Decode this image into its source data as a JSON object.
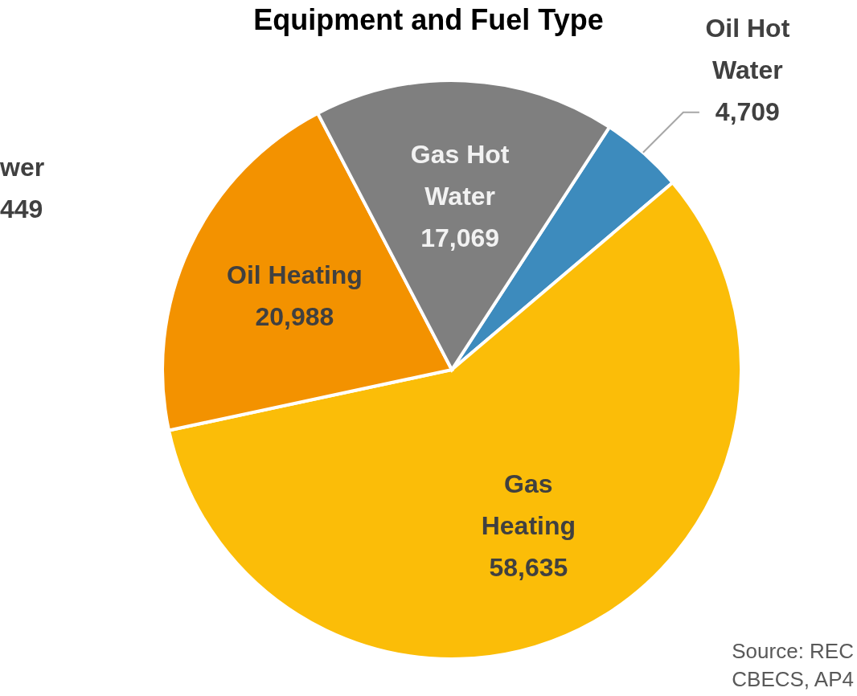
{
  "chart_data": {
    "type": "pie",
    "title": "Equipment and Fuel Type",
    "categories": [
      "Oil Hot Water",
      "Gas Heating",
      "Oil Heating",
      "Gas Hot Water"
    ],
    "values": [
      4709,
      58635,
      20988,
      17069
    ],
    "colors": [
      "#3d8bbd",
      "#fbbd08",
      "#f39200",
      "#7f7f7f"
    ],
    "value_labels": [
      "4,709",
      "58,635",
      "20,988",
      "17,069"
    ],
    "annotations": [
      "wer",
      "449",
      "Source: REC",
      "CBECS, AP4"
    ]
  }
}
